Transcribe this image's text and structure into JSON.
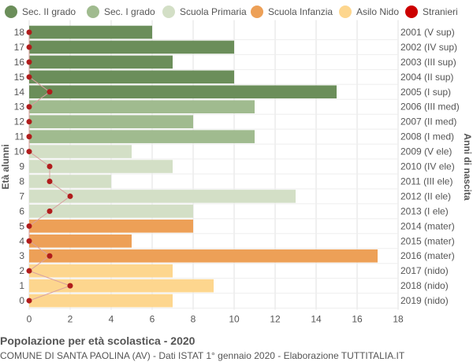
{
  "chart_data": {
    "type": "bar",
    "orientation": "horizontal",
    "title": "Popolazione per età scolastica - 2020",
    "subtitle": "COMUNE DI SANTA PAOLINA (AV) - Dati ISTAT 1° gennaio 2020 - Elaborazione TUTTITALIA.IT",
    "ylabel": "Età alunni",
    "ylabel_right": "Anni di nascita",
    "xlim": [
      0,
      18
    ],
    "x_ticks": [
      "0",
      "2",
      "4",
      "6",
      "8",
      "10",
      "12",
      "14",
      "16",
      "18"
    ],
    "grid": true,
    "legend_position": "top",
    "legend": [
      {
        "name": "Sec. II grado",
        "color": "#6b8e5a"
      },
      {
        "name": "Sec. I grado",
        "color": "#a0bb8f"
      },
      {
        "name": "Scuola Primaria",
        "color": "#d3dfc6"
      },
      {
        "name": "Scuola Infanzia",
        "color": "#eda057"
      },
      {
        "name": "Asilo Nido",
        "color": "#fdd68e"
      },
      {
        "name": "Stranieri",
        "color": "#cc0000"
      }
    ],
    "rows": [
      {
        "age": "18",
        "birth": "2001 (V sup)",
        "value": 6,
        "stranieri": 0,
        "group": 0
      },
      {
        "age": "17",
        "birth": "2002 (IV sup)",
        "value": 10,
        "stranieri": 0,
        "group": 0
      },
      {
        "age": "16",
        "birth": "2003 (III sup)",
        "value": 7,
        "stranieri": 0,
        "group": 0
      },
      {
        "age": "15",
        "birth": "2004 (II sup)",
        "value": 10,
        "stranieri": 0,
        "group": 0
      },
      {
        "age": "14",
        "birth": "2005 (I sup)",
        "value": 15,
        "stranieri": 1,
        "group": 0
      },
      {
        "age": "13",
        "birth": "2006 (III med)",
        "value": 11,
        "stranieri": 0,
        "group": 1
      },
      {
        "age": "12",
        "birth": "2007 (II med)",
        "value": 8,
        "stranieri": 0,
        "group": 1
      },
      {
        "age": "11",
        "birth": "2008 (I med)",
        "value": 11,
        "stranieri": 0,
        "group": 1
      },
      {
        "age": "10",
        "birth": "2009 (V ele)",
        "value": 5,
        "stranieri": 0,
        "group": 2
      },
      {
        "age": "9",
        "birth": "2010 (IV ele)",
        "value": 7,
        "stranieri": 1,
        "group": 2
      },
      {
        "age": "8",
        "birth": "2011 (III ele)",
        "value": 4,
        "stranieri": 1,
        "group": 2
      },
      {
        "age": "7",
        "birth": "2012 (II ele)",
        "value": 13,
        "stranieri": 2,
        "group": 2
      },
      {
        "age": "6",
        "birth": "2013 (I ele)",
        "value": 8,
        "stranieri": 1,
        "group": 2
      },
      {
        "age": "5",
        "birth": "2014 (mater)",
        "value": 8,
        "stranieri": 0,
        "group": 3
      },
      {
        "age": "4",
        "birth": "2015 (mater)",
        "value": 5,
        "stranieri": 0,
        "group": 3
      },
      {
        "age": "3",
        "birth": "2016 (mater)",
        "value": 17,
        "stranieri": 1,
        "group": 3
      },
      {
        "age": "2",
        "birth": "2017 (nido)",
        "value": 7,
        "stranieri": 0,
        "group": 4
      },
      {
        "age": "1",
        "birth": "2018 (nido)",
        "value": 9,
        "stranieri": 2,
        "group": 4
      },
      {
        "age": "0",
        "birth": "2019 (nido)",
        "value": 7,
        "stranieri": 0,
        "group": 4
      }
    ]
  }
}
